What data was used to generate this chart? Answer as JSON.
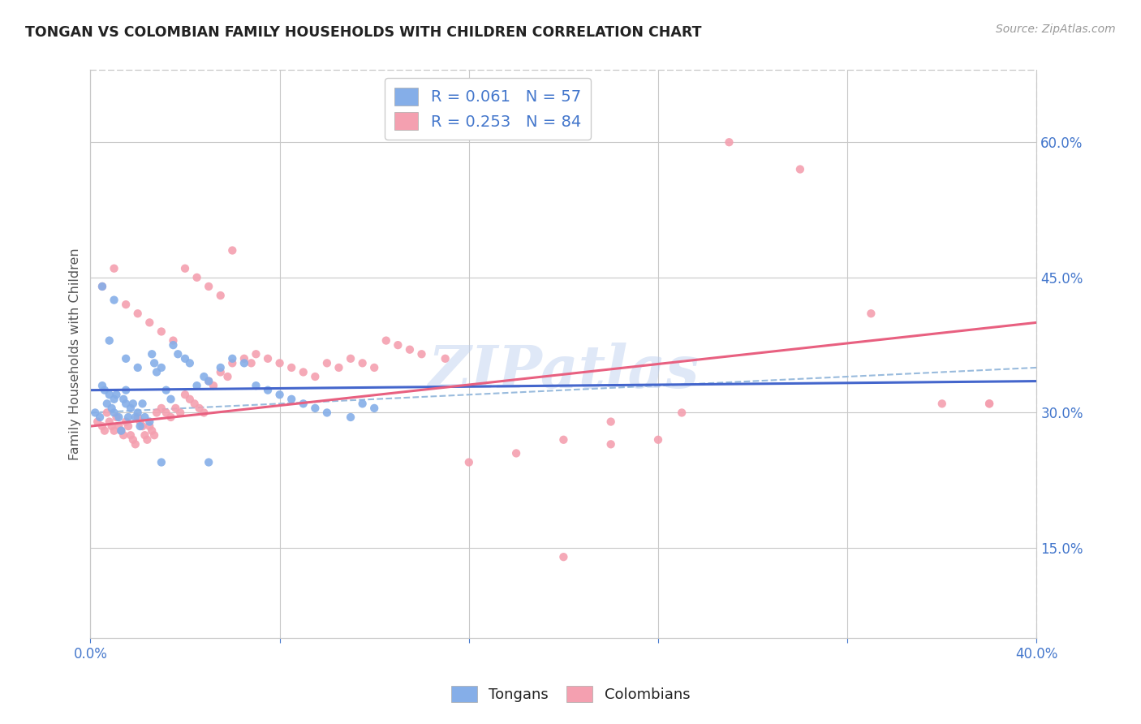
{
  "title": "TONGAN VS COLOMBIAN FAMILY HOUSEHOLDS WITH CHILDREN CORRELATION CHART",
  "source": "Source: ZipAtlas.com",
  "ylabel": "Family Households with Children",
  "xlim": [
    0.0,
    0.4
  ],
  "ylim": [
    0.05,
    0.68
  ],
  "yticks": [
    0.15,
    0.3,
    0.45,
    0.6
  ],
  "ytick_labels": [
    "15.0%",
    "30.0%",
    "45.0%",
    "60.0%"
  ],
  "xticks": [
    0.0,
    0.08,
    0.16,
    0.24,
    0.32,
    0.4
  ],
  "xtick_labels": [
    "0.0%",
    "",
    "",
    "",
    "",
    "40.0%"
  ],
  "tongan_R": 0.061,
  "tongan_N": 57,
  "colombian_R": 0.253,
  "colombian_N": 84,
  "tongan_color": "#85aee8",
  "colombian_color": "#f4a0b0",
  "tongan_line_color": "#4466cc",
  "colombian_line_color": "#e86080",
  "dashed_line_color": "#99bbdd",
  "watermark": "ZIPatlas",
  "background_color": "#ffffff",
  "grid_color": "#c8c8c8",
  "axis_color": "#4477cc",
  "tongan_x": [
    0.002,
    0.004,
    0.005,
    0.006,
    0.007,
    0.008,
    0.009,
    0.01,
    0.01,
    0.011,
    0.012,
    0.013,
    0.014,
    0.015,
    0.015,
    0.016,
    0.017,
    0.018,
    0.019,
    0.02,
    0.021,
    0.022,
    0.023,
    0.025,
    0.026,
    0.027,
    0.028,
    0.03,
    0.032,
    0.034,
    0.035,
    0.037,
    0.04,
    0.042,
    0.045,
    0.048,
    0.05,
    0.055,
    0.06,
    0.065,
    0.07,
    0.075,
    0.08,
    0.085,
    0.09,
    0.095,
    0.1,
    0.11,
    0.115,
    0.12,
    0.005,
    0.008,
    0.01,
    0.015,
    0.02,
    0.03,
    0.05
  ],
  "tongan_y": [
    0.3,
    0.295,
    0.33,
    0.325,
    0.31,
    0.32,
    0.305,
    0.315,
    0.3,
    0.32,
    0.295,
    0.28,
    0.315,
    0.31,
    0.325,
    0.295,
    0.305,
    0.31,
    0.295,
    0.3,
    0.285,
    0.31,
    0.295,
    0.29,
    0.365,
    0.355,
    0.345,
    0.35,
    0.325,
    0.315,
    0.375,
    0.365,
    0.36,
    0.355,
    0.33,
    0.34,
    0.335,
    0.35,
    0.36,
    0.355,
    0.33,
    0.325,
    0.32,
    0.315,
    0.31,
    0.305,
    0.3,
    0.295,
    0.31,
    0.305,
    0.44,
    0.38,
    0.425,
    0.36,
    0.35,
    0.245,
    0.245
  ],
  "colombian_x": [
    0.003,
    0.005,
    0.006,
    0.007,
    0.008,
    0.009,
    0.01,
    0.011,
    0.012,
    0.013,
    0.014,
    0.015,
    0.016,
    0.017,
    0.018,
    0.019,
    0.02,
    0.021,
    0.022,
    0.023,
    0.024,
    0.025,
    0.026,
    0.027,
    0.028,
    0.03,
    0.032,
    0.034,
    0.036,
    0.038,
    0.04,
    0.042,
    0.044,
    0.046,
    0.048,
    0.05,
    0.052,
    0.055,
    0.058,
    0.06,
    0.065,
    0.068,
    0.07,
    0.075,
    0.08,
    0.085,
    0.09,
    0.095,
    0.1,
    0.105,
    0.11,
    0.115,
    0.12,
    0.125,
    0.13,
    0.135,
    0.14,
    0.15,
    0.16,
    0.18,
    0.2,
    0.22,
    0.25,
    0.27,
    0.3,
    0.33,
    0.36,
    0.38,
    0.005,
    0.01,
    0.015,
    0.02,
    0.025,
    0.03,
    0.035,
    0.04,
    0.045,
    0.05,
    0.055,
    0.06,
    0.24,
    0.22,
    0.2,
    0.38
  ],
  "colombian_y": [
    0.29,
    0.285,
    0.28,
    0.3,
    0.29,
    0.285,
    0.28,
    0.295,
    0.285,
    0.28,
    0.275,
    0.29,
    0.285,
    0.275,
    0.27,
    0.265,
    0.295,
    0.29,
    0.285,
    0.275,
    0.27,
    0.285,
    0.28,
    0.275,
    0.3,
    0.305,
    0.3,
    0.295,
    0.305,
    0.3,
    0.32,
    0.315,
    0.31,
    0.305,
    0.3,
    0.335,
    0.33,
    0.345,
    0.34,
    0.355,
    0.36,
    0.355,
    0.365,
    0.36,
    0.355,
    0.35,
    0.345,
    0.34,
    0.355,
    0.35,
    0.36,
    0.355,
    0.35,
    0.38,
    0.375,
    0.37,
    0.365,
    0.36,
    0.245,
    0.255,
    0.27,
    0.29,
    0.3,
    0.6,
    0.57,
    0.41,
    0.31,
    0.31,
    0.44,
    0.46,
    0.42,
    0.41,
    0.4,
    0.39,
    0.38,
    0.46,
    0.45,
    0.44,
    0.43,
    0.48,
    0.27,
    0.265,
    0.14,
    0.31
  ]
}
